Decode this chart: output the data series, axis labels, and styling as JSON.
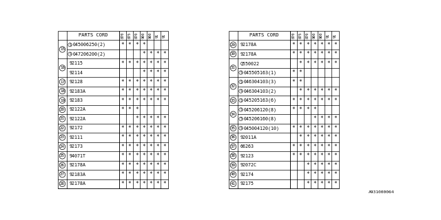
{
  "title": "PARTS CORD",
  "bg_color": "#ffffff",
  "border_color": "#000000",
  "text_color": "#000000",
  "watermark": "A931000064",
  "left_table": {
    "rows": [
      {
        "num": 15,
        "parts": [
          "(S)045006250(2)",
          "(S)047206200(2)"
        ],
        "stars": [
          [
            1,
            1,
            1,
            1,
            0,
            0,
            0
          ],
          [
            0,
            0,
            0,
            1,
            1,
            1,
            1
          ]
        ]
      },
      {
        "num": 16,
        "parts": [
          "92115",
          "92114"
        ],
        "stars": [
          [
            1,
            1,
            1,
            1,
            1,
            1,
            1
          ],
          [
            0,
            0,
            0,
            1,
            1,
            1,
            1
          ]
        ]
      },
      {
        "num": 17,
        "parts": [
          "92128"
        ],
        "stars": [
          [
            1,
            1,
            1,
            1,
            1,
            1,
            1
          ]
        ]
      },
      {
        "num": 18,
        "parts": [
          "92183A"
        ],
        "stars": [
          [
            1,
            1,
            1,
            1,
            1,
            1,
            1
          ]
        ]
      },
      {
        "num": 19,
        "parts": [
          "92183"
        ],
        "stars": [
          [
            1,
            1,
            1,
            1,
            1,
            1,
            1
          ]
        ]
      },
      {
        "num": 20,
        "parts": [
          "92122A"
        ],
        "stars": [
          [
            1,
            1,
            1,
            0,
            0,
            0,
            0
          ]
        ]
      },
      {
        "num": 21,
        "parts": [
          "92122A"
        ],
        "stars": [
          [
            0,
            0,
            1,
            1,
            1,
            1,
            1
          ]
        ]
      },
      {
        "num": 22,
        "parts": [
          "92172"
        ],
        "stars": [
          [
            1,
            1,
            1,
            1,
            1,
            1,
            1
          ]
        ]
      },
      {
        "num": 23,
        "parts": [
          "92111"
        ],
        "stars": [
          [
            1,
            1,
            1,
            1,
            1,
            1,
            1
          ]
        ]
      },
      {
        "num": 24,
        "parts": [
          "92173"
        ],
        "stars": [
          [
            1,
            1,
            1,
            1,
            1,
            1,
            1
          ]
        ]
      },
      {
        "num": 25,
        "parts": [
          "94071T"
        ],
        "stars": [
          [
            1,
            1,
            1,
            1,
            1,
            1,
            1
          ]
        ]
      },
      {
        "num": 26,
        "parts": [
          "92178A"
        ],
        "stars": [
          [
            1,
            1,
            1,
            1,
            1,
            1,
            1
          ]
        ]
      },
      {
        "num": 27,
        "parts": [
          "92183A"
        ],
        "stars": [
          [
            1,
            1,
            1,
            1,
            1,
            1,
            1
          ]
        ]
      },
      {
        "num": 28,
        "parts": [
          "92178A"
        ],
        "stars": [
          [
            1,
            1,
            1,
            1,
            1,
            1,
            1
          ]
        ]
      }
    ]
  },
  "right_table": {
    "rows": [
      {
        "num": 29,
        "parts": [
          "92178A"
        ],
        "stars": [
          [
            1,
            1,
            1,
            1,
            1,
            1,
            1
          ]
        ]
      },
      {
        "num": 30,
        "parts": [
          "92178A"
        ],
        "stars": [
          [
            1,
            1,
            1,
            1,
            1,
            1,
            1
          ]
        ]
      },
      {
        "num": 31,
        "parts": [
          "Q550022",
          "(S)045505163(1)"
        ],
        "stars": [
          [
            0,
            1,
            1,
            1,
            1,
            1,
            1
          ],
          [
            1,
            1,
            0,
            0,
            0,
            0,
            0
          ]
        ]
      },
      {
        "num": 32,
        "parts": [
          "(S)046304103(3)",
          "(S)046304103(2)"
        ],
        "stars": [
          [
            1,
            1,
            0,
            0,
            0,
            0,
            0
          ],
          [
            0,
            1,
            1,
            1,
            1,
            1,
            1
          ]
        ]
      },
      {
        "num": 33,
        "parts": [
          "(S)045205163(6)"
        ],
        "stars": [
          [
            1,
            1,
            1,
            1,
            1,
            1,
            1
          ]
        ]
      },
      {
        "num": 34,
        "parts": [
          "(S)045206120(8)",
          "(S)045206160(8)"
        ],
        "stars": [
          [
            1,
            1,
            1,
            1,
            0,
            0,
            0
          ],
          [
            0,
            0,
            0,
            1,
            1,
            1,
            1
          ]
        ]
      },
      {
        "num": 35,
        "parts": [
          "(S)045004120(10)"
        ],
        "stars": [
          [
            1,
            1,
            1,
            1,
            1,
            1,
            1
          ]
        ]
      },
      {
        "num": 36,
        "parts": [
          "92011A"
        ],
        "stars": [
          [
            0,
            1,
            1,
            1,
            1,
            1,
            1
          ]
        ]
      },
      {
        "num": 37,
        "parts": [
          "66263"
        ],
        "stars": [
          [
            1,
            1,
            1,
            1,
            1,
            1,
            1
          ]
        ]
      },
      {
        "num": 38,
        "parts": [
          "92123"
        ],
        "stars": [
          [
            1,
            1,
            1,
            1,
            1,
            1,
            1
          ]
        ]
      },
      {
        "num": 39,
        "parts": [
          "92072C"
        ],
        "stars": [
          [
            0,
            0,
            1,
            1,
            1,
            1,
            1
          ]
        ]
      },
      {
        "num": 40,
        "parts": [
          "92174"
        ],
        "stars": [
          [
            0,
            0,
            1,
            1,
            1,
            1,
            1
          ]
        ]
      },
      {
        "num": 41,
        "parts": [
          "92175"
        ],
        "stars": [
          [
            0,
            0,
            1,
            1,
            1,
            1,
            1
          ]
        ]
      }
    ]
  }
}
